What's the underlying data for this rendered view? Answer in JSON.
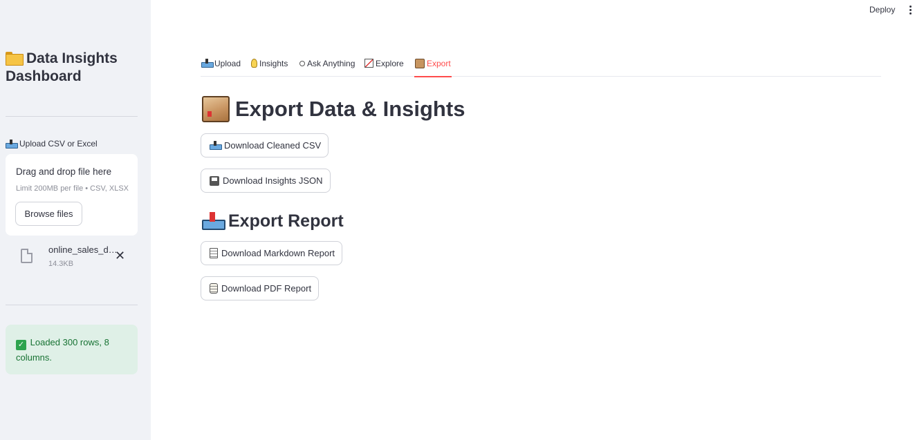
{
  "sidebar": {
    "title": "Data Insights Dashboard",
    "uploader": {
      "label": "Upload CSV or Excel",
      "drop_title": "Drag and drop file here",
      "limit": "Limit 200MB per file • CSV, XLSX",
      "browse": "Browse files"
    },
    "file": {
      "name": "online_sales_data.csv",
      "size": "14.3KB"
    },
    "success": "Loaded 300 rows, 8 columns."
  },
  "header": {
    "deploy": "Deploy"
  },
  "tabs": [
    {
      "label": "Upload",
      "icon": "outbox-tray-icon"
    },
    {
      "label": "Insights",
      "icon": "lightbulb-icon"
    },
    {
      "label": "Ask Anything",
      "icon": "thought-icon"
    },
    {
      "label": "Explore",
      "icon": "chart-icon"
    },
    {
      "label": "Export",
      "icon": "package-icon",
      "active": true
    }
  ],
  "main": {
    "heading": "Export Data & Insights",
    "buttons": {
      "csv": "Download Cleaned CSV",
      "json": "Download Insights JSON"
    },
    "report_heading": "Export Report",
    "report_buttons": {
      "markdown": "Download Markdown Report",
      "pdf": "Download PDF Report"
    }
  },
  "colors": {
    "accent": "#ff4b4b",
    "sidebar_bg": "#f0f2f6",
    "success_bg": "#dff0e7",
    "success_text": "#177233"
  }
}
